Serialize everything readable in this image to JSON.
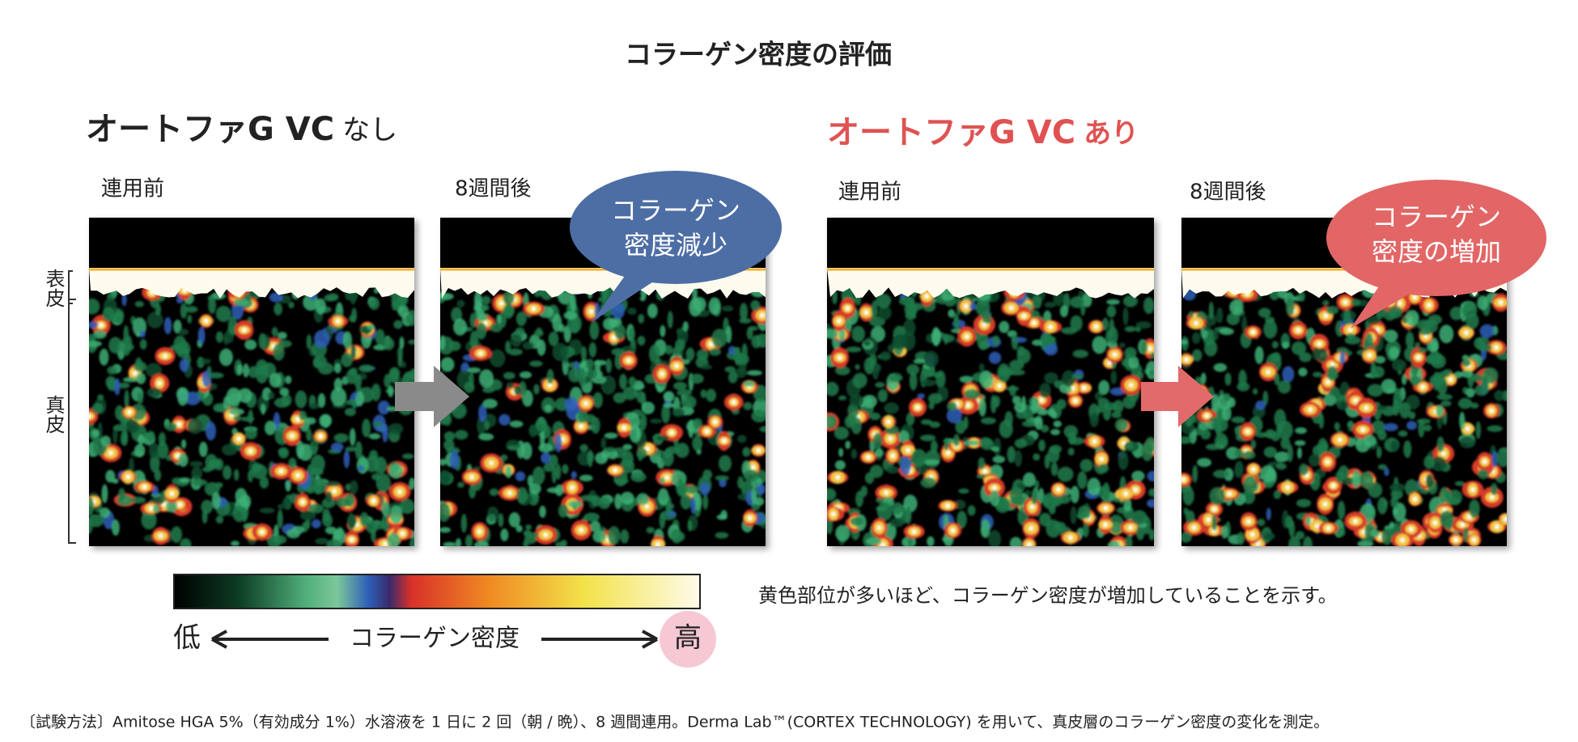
{
  "title": "コラーゲン密度の評価",
  "groups": [
    {
      "product": "オートファG VC",
      "condition": "なし",
      "panels": [
        {
          "label": "連用前"
        },
        {
          "label": "8週間後"
        }
      ],
      "bubble": [
        "コラーゲン",
        "密度減少"
      ]
    },
    {
      "product": "オートファG VC",
      "condition": "あり",
      "panels": [
        {
          "label": "連用前"
        },
        {
          "label": "8週間後"
        }
      ],
      "bubble": [
        "コラーゲン",
        "密度の増加"
      ]
    }
  ],
  "layer_labels": {
    "epidermis": "表皮",
    "dermis": "真皮"
  },
  "legend": {
    "low": "低",
    "label": "コラーゲン密度",
    "high": "高"
  },
  "note": "黄色部位が多いほど、コラーゲン密度が増加していることを示す。",
  "footnote": "〔試験方法〕Amitose HGA 5%（有効成分 1%）水溶液を 1 日に 2 回（朝 / 晩）、8 週間連用。Derma Lab™(CORTEX TECHNOLOGY) を用いて、真皮層のコラーゲン密度の変化を測定。"
}
